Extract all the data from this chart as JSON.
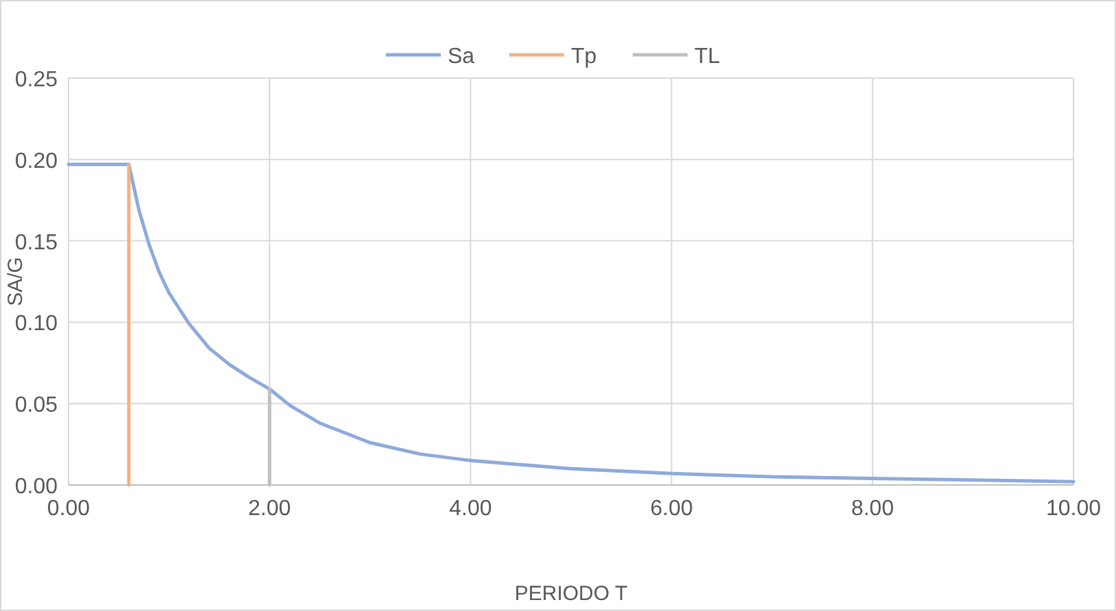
{
  "chart_data": {
    "type": "line",
    "xlabel": "PERIODO T",
    "ylabel": "SA/G",
    "xlim": [
      0,
      10
    ],
    "ylim": [
      0,
      0.25
    ],
    "xticks": [
      {
        "value": 0,
        "label": "0.00"
      },
      {
        "value": 2,
        "label": "2.00"
      },
      {
        "value": 4,
        "label": "4.00"
      },
      {
        "value": 6,
        "label": "6.00"
      },
      {
        "value": 8,
        "label": "8.00"
      },
      {
        "value": 10,
        "label": "10.00"
      }
    ],
    "yticks": [
      {
        "value": 0,
        "label": "0.00"
      },
      {
        "value": 0.05,
        "label": "0.05"
      },
      {
        "value": 0.1,
        "label": "0.10"
      },
      {
        "value": 0.15,
        "label": "0.15"
      },
      {
        "value": 0.2,
        "label": "0.20"
      },
      {
        "value": 0.25,
        "label": "0.25"
      }
    ],
    "grid": true,
    "legend": "top",
    "marker": "none",
    "line_style": "solid",
    "series": [
      {
        "name": "Sa",
        "color": "#8eaadb",
        "x": [
          0,
          0.6,
          0.7,
          0.8,
          0.9,
          1.0,
          1.2,
          1.4,
          1.6,
          1.8,
          2.0,
          2.2,
          2.5,
          3,
          3.5,
          4,
          5,
          6,
          7,
          8,
          9,
          10
        ],
        "values": [
          0.197,
          0.197,
          0.169,
          0.148,
          0.131,
          0.118,
          0.099,
          0.084,
          0.074,
          0.066,
          0.059,
          0.049,
          0.038,
          0.026,
          0.019,
          0.015,
          0.01,
          0.007,
          0.005,
          0.004,
          0.003,
          0.002
        ]
      },
      {
        "name": "Tp",
        "color": "#f4b183",
        "x": [
          0.6,
          0.6
        ],
        "values": [
          0,
          0.197
        ]
      },
      {
        "name": "TL",
        "color": "#bfbfbf",
        "x": [
          2,
          2
        ],
        "values": [
          0,
          0.059
        ]
      }
    ]
  }
}
